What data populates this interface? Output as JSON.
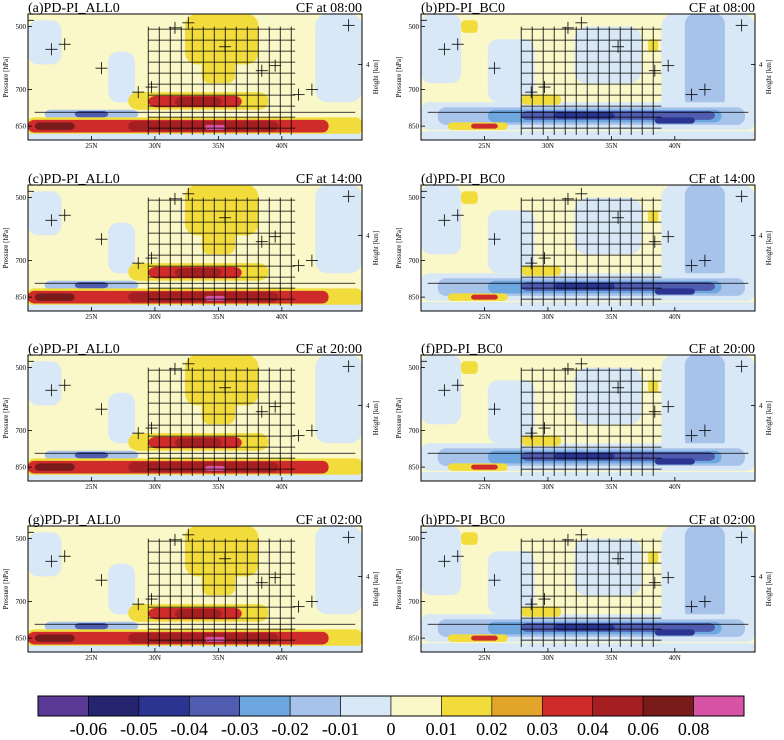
{
  "palette": [
    "#5b3a97",
    "#24256e",
    "#2b3591",
    "#4f5cb0",
    "#6ea6e0",
    "#a8c3ea",
    "#d9e8f6",
    "#faf7c8",
    "#f1dc3c",
    "#e2a429",
    "#cf2b2b",
    "#a51f22",
    "#7a1b1b",
    "#d653a6"
  ],
  "axis": {
    "ylabel_left": "Pressure [hPa]",
    "ylabel_right": "Height [km]",
    "pressure_ticks": [
      "500",
      "700",
      "850"
    ],
    "height_ticks": [
      "4"
    ],
    "lat_ticks": [
      "25N",
      "30N",
      "35N",
      "40N"
    ]
  },
  "chart_data": [
    {
      "type": "heatmap",
      "panel": "a",
      "title": "(a)PD-PI_ALL0",
      "subtitle": "CF at 08:00"
    },
    {
      "type": "heatmap",
      "panel": "b",
      "title": "(b)PD-PI_BC0",
      "subtitle": "CF at 08:00"
    },
    {
      "type": "heatmap",
      "panel": "c",
      "title": "(c)PD-PI_ALL0",
      "subtitle": "CF at 14:00"
    },
    {
      "type": "heatmap",
      "panel": "d",
      "title": "(d)PD-PI_BC0",
      "subtitle": "CF at 14:00"
    },
    {
      "type": "heatmap",
      "panel": "e",
      "title": "(e)PD-PI_ALL0",
      "subtitle": "CF at 20:00"
    },
    {
      "type": "heatmap",
      "panel": "f",
      "title": "(f)PD-PI_BC0",
      "subtitle": "CF at 20:00"
    },
    {
      "type": "heatmap",
      "panel": "g",
      "title": "(g)PD-PI_ALL0",
      "subtitle": "CF at 02:00"
    },
    {
      "type": "heatmap",
      "panel": "h",
      "title": "(h)PD-PI_BC0",
      "subtitle": "CF at 02:00"
    }
  ],
  "colorbar": {
    "labels": [
      "-0.06",
      "-0.05",
      "-0.04",
      "-0.03",
      "-0.02",
      "-0.01",
      "0",
      "0.01",
      "0.02",
      "0.03",
      "0.04",
      "0.06",
      "0.08"
    ]
  }
}
